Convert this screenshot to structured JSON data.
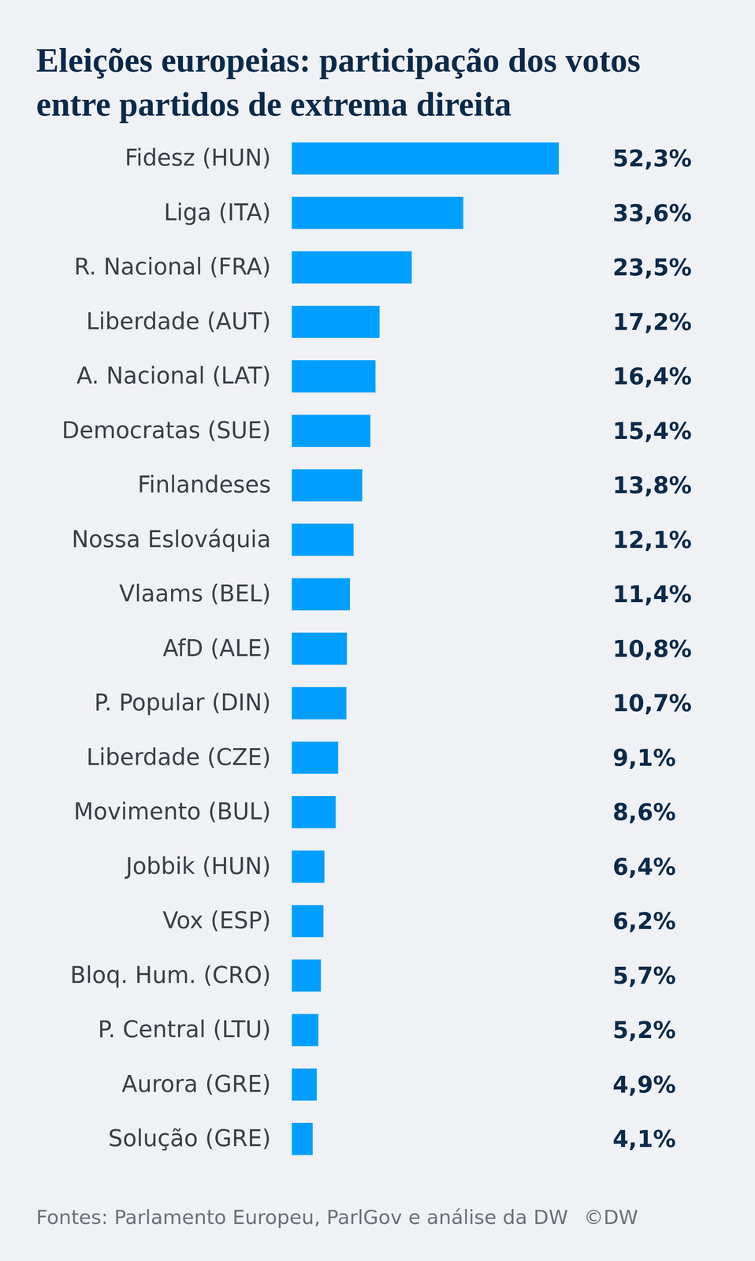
{
  "chart_data": {
    "type": "bar",
    "orientation": "horizontal",
    "title": "Eleições europeias: participação dos votos entre partidos de extrema direita",
    "categories": [
      "Fidesz (HUN)",
      "Liga (ITA)",
      "R. Nacional (FRA)",
      "Liberdade (AUT)",
      "A. Nacional (LAT)",
      "Democratas (SUE)",
      "Finlandeses",
      "Nossa Eslováquia",
      "Vlaams (BEL)",
      "AfD (ALE)",
      "P. Popular (DIN)",
      "Liberdade (CZE)",
      "Movimento (BUL)",
      "Jobbik (HUN)",
      "Vox (ESP)",
      "Bloq. Hum. (CRO)",
      "P. Central (LTU)",
      "Aurora (GRE)",
      "Solução (GRE)"
    ],
    "values": [
      52.3,
      33.6,
      23.5,
      17.2,
      16.4,
      15.4,
      13.8,
      12.1,
      11.4,
      10.8,
      10.7,
      9.1,
      8.6,
      6.4,
      6.2,
      5.7,
      5.2,
      4.9,
      4.1
    ],
    "value_labels": [
      "52,3%",
      "33,6%",
      "23,5%",
      "17,2%",
      "16,4%",
      "15,4%",
      "13,8%",
      "12,1%",
      "11,4%",
      "10,8%",
      "10,7%",
      "9,1%",
      "8,6%",
      "6,4%",
      "6,2%",
      "5,7%",
      "5,2%",
      "4,9%",
      "4,1%"
    ],
    "data_labels": true,
    "tick_labels": "y",
    "color": "#009fff",
    "source": "Fontes: Parlamento Europeu, ParlGov e análise da DW",
    "credit": "©DW"
  }
}
